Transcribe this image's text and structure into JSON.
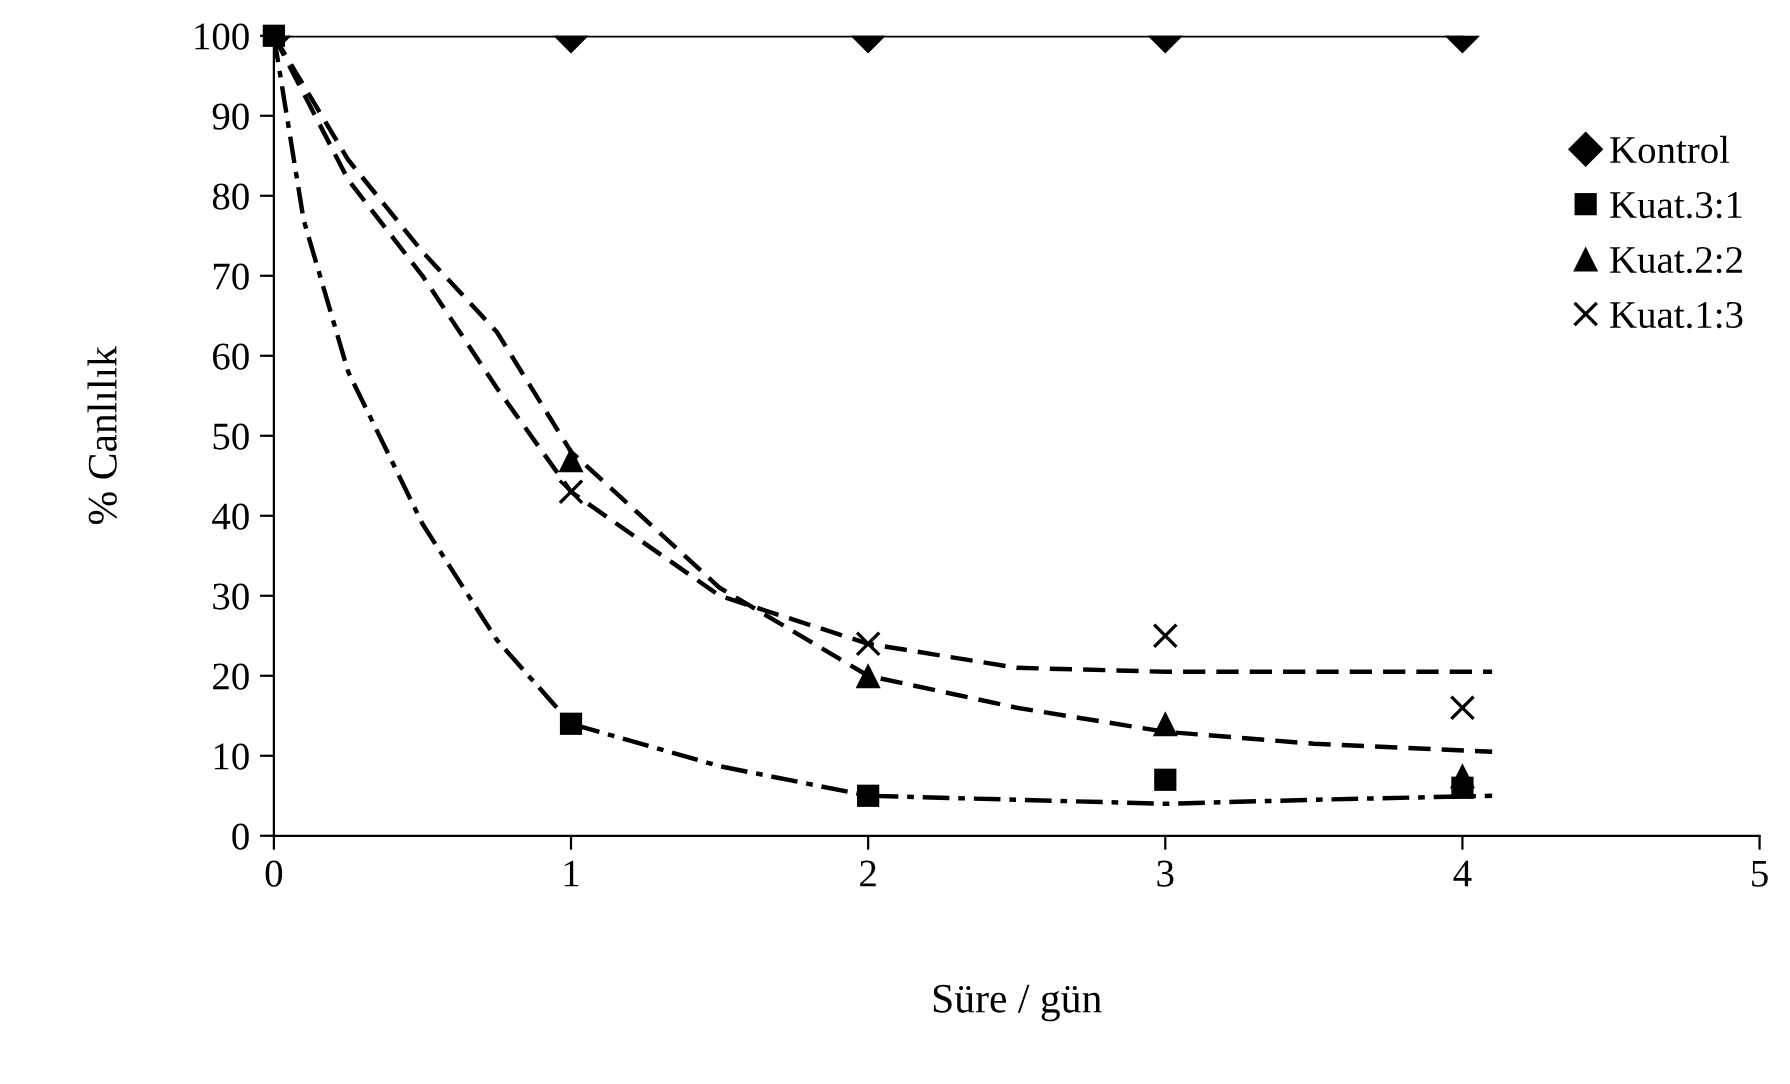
{
  "chart_data": {
    "type": "scatter",
    "xlabel": "Süre / gün",
    "ylabel": "% Canlılık",
    "x": [
      0,
      1,
      2,
      3,
      4
    ],
    "series": [
      {
        "name": "Kontrol",
        "type": "line",
        "color": "#000000",
        "marker": "diamond",
        "line_style": "solid",
        "values": [
          100,
          100,
          100,
          100,
          100
        ]
      },
      {
        "name": "Kuat.3:1",
        "color": "#000000",
        "marker": "square",
        "values": [
          100,
          14,
          5,
          7,
          6
        ]
      },
      {
        "name": "Kuat.2:2",
        "color": "#000000",
        "marker": "triangle",
        "values": [
          null,
          47,
          20,
          14,
          7.5
        ]
      },
      {
        "name": "Kuat.1:3",
        "color": "#000000",
        "marker": "cross",
        "values": [
          null,
          43,
          24,
          25,
          16
        ]
      },
      {
        "type": "line",
        "color": "#000000",
        "marker": "none",
        "line_style": "dashdot",
        "x": [
          0,
          0.1,
          0.25,
          0.5,
          0.75,
          1,
          1.5,
          2,
          2.5,
          3,
          3.5,
          4.1
        ],
        "values": [
          100,
          77,
          58,
          39,
          24.5,
          14,
          8.7,
          5,
          4.5,
          4,
          4.5,
          5
        ]
      },
      {
        "type": "line",
        "color": "#000000",
        "marker": "none",
        "line_style": "dashed",
        "x": [
          0,
          0.25,
          0.5,
          0.75,
          1,
          1.5,
          2,
          2.5,
          3,
          3.5,
          4.1
        ],
        "values": [
          100,
          84.5,
          73,
          63,
          48,
          31,
          20,
          16,
          13,
          11.5,
          10.5
        ]
      },
      {
        "type": "line",
        "color": "#000000",
        "marker": "none",
        "line_style": "dashed",
        "x": [
          0,
          0.25,
          0.5,
          0.75,
          1,
          1.5,
          2,
          2.5,
          3,
          3.5,
          4.1
        ],
        "values": [
          100,
          82,
          70,
          56,
          43,
          30,
          24,
          21,
          20.5,
          20.5,
          20.5
        ]
      }
    ],
    "xlim": [
      0,
      5
    ],
    "xticks": [
      0,
      1,
      2,
      3,
      4,
      5
    ],
    "ylim": [
      0,
      100
    ],
    "yticks": [
      0,
      10,
      20,
      30,
      40,
      50,
      60,
      70,
      80,
      90,
      100
    ],
    "grid": false,
    "legend": "right"
  }
}
